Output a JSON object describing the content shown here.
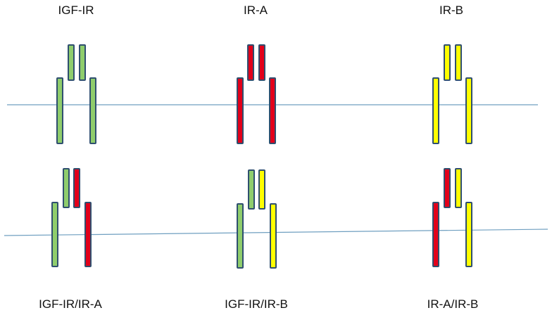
{
  "colors": {
    "igf_ir": "#8fcd6c",
    "ir_a": "#e2001a",
    "ir_b": "#ffff00",
    "outline": "#2f4f6f",
    "membrane": "#6f9fc0"
  },
  "top_row": {
    "receptors": [
      {
        "label": "IGF-IR",
        "left": "igf_ir",
        "right": "igf_ir"
      },
      {
        "label": "IR-A",
        "left": "ir_a",
        "right": "ir_a"
      },
      {
        "label": "IR-B",
        "left": "ir_b",
        "right": "ir_b"
      }
    ]
  },
  "bottom_row": {
    "receptors": [
      {
        "label": "IGF-IR/IR-A",
        "left": "igf_ir",
        "right": "ir_a"
      },
      {
        "label": "IGF-IR/IR-B",
        "left": "igf_ir",
        "right": "ir_b"
      },
      {
        "label": "IR-A/IR-B",
        "left": "ir_a",
        "right": "ir_b"
      }
    ]
  }
}
